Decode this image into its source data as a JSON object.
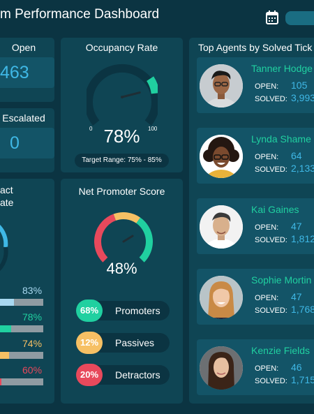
{
  "header": {
    "title": "m Performance Dashboard",
    "calendar_icon": "calendar-icon"
  },
  "open_panel": {
    "title": "Open",
    "value": "463"
  },
  "escalated_panel": {
    "title": "Escalated",
    "value": "0"
  },
  "contact_panel": {
    "title_line1": "act",
    "title_line2": "ate",
    "rows": [
      {
        "pct_label": "83%",
        "value": 0.83,
        "color": "#a8d8f0",
        "label_color": "#a8d8f0"
      },
      {
        "pct_label": "78%",
        "value": 0.78,
        "color": "#20d0a0",
        "label_color": "#20d0a0"
      },
      {
        "pct_label": "74%",
        "value": 0.74,
        "color": "#f6c064",
        "label_color": "#f6c064"
      },
      {
        "pct_label": "60%",
        "value": 0.6,
        "color": "#e8495c",
        "label_color": "#e8495c"
      }
    ]
  },
  "occupancy": {
    "title": "Occupancy Rate",
    "value": "78%",
    "min_label": "0",
    "max_label": "100",
    "target": "Target Range: 75% - 85%",
    "level": 0.78
  },
  "nps": {
    "title": "Net Promoter Score",
    "value": "48%",
    "items": [
      {
        "pct": "68%",
        "label": "Promoters",
        "color": "#20d0a0"
      },
      {
        "pct": "12%",
        "label": "Passives",
        "color": "#f6c064"
      },
      {
        "pct": "20%",
        "label": "Detractors",
        "color": "#e8495c"
      }
    ]
  },
  "agents": {
    "title": "Top Agents by Solved Tick",
    "open_label": "OPEN:",
    "solved_label": "SOLVED:",
    "list": [
      {
        "name": "Tanner Hodge",
        "open": "105",
        "solved": "3,993"
      },
      {
        "name": "Lynda Shame",
        "open": "64",
        "solved": "2,133"
      },
      {
        "name": "Kai Gaines",
        "open": "47",
        "solved": "1,812"
      },
      {
        "name": "Sophie Mortin",
        "open": "47",
        "solved": "1,768"
      },
      {
        "name": "Kenzie Fields",
        "open": "46",
        "solved": "1,715"
      }
    ]
  }
}
